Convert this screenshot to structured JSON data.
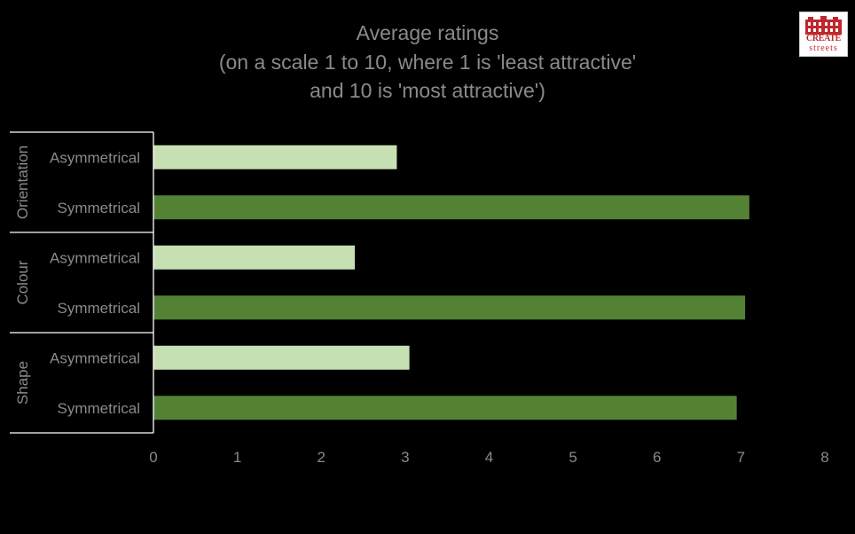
{
  "logo": {
    "line1": "CREATE",
    "line2": "streets"
  },
  "chart_data": {
    "type": "bar",
    "orientation": "horizontal",
    "title": "Average ratings",
    "subtitle": [
      "(on a scale 1 to 10, where 1 is 'least attractive'",
      "and 10 is 'most attractive')"
    ],
    "groups": [
      {
        "name": "Orientation",
        "bars": [
          {
            "label": "Asymmetrical",
            "value": 2.9
          },
          {
            "label": "Symmetrical",
            "value": 7.1
          }
        ]
      },
      {
        "name": "Colour",
        "bars": [
          {
            "label": "Asymmetrical",
            "value": 2.4
          },
          {
            "label": "Symmetrical",
            "value": 7.05
          }
        ]
      },
      {
        "name": "Shape",
        "bars": [
          {
            "label": "Asymmetrical",
            "value": 3.05
          },
          {
            "label": "Symmetrical",
            "value": 6.95
          }
        ]
      }
    ],
    "xlim": [
      0,
      8
    ],
    "xticks": [
      "0",
      "1",
      "2",
      "3",
      "4",
      "5",
      "6",
      "7",
      "8"
    ],
    "colors": {
      "Asymmetrical": "#c6e0b4",
      "Symmetrical": "#548235",
      "text": "#8a8a8a",
      "axis": "#ffffff"
    },
    "grid": false,
    "legend": "none"
  }
}
